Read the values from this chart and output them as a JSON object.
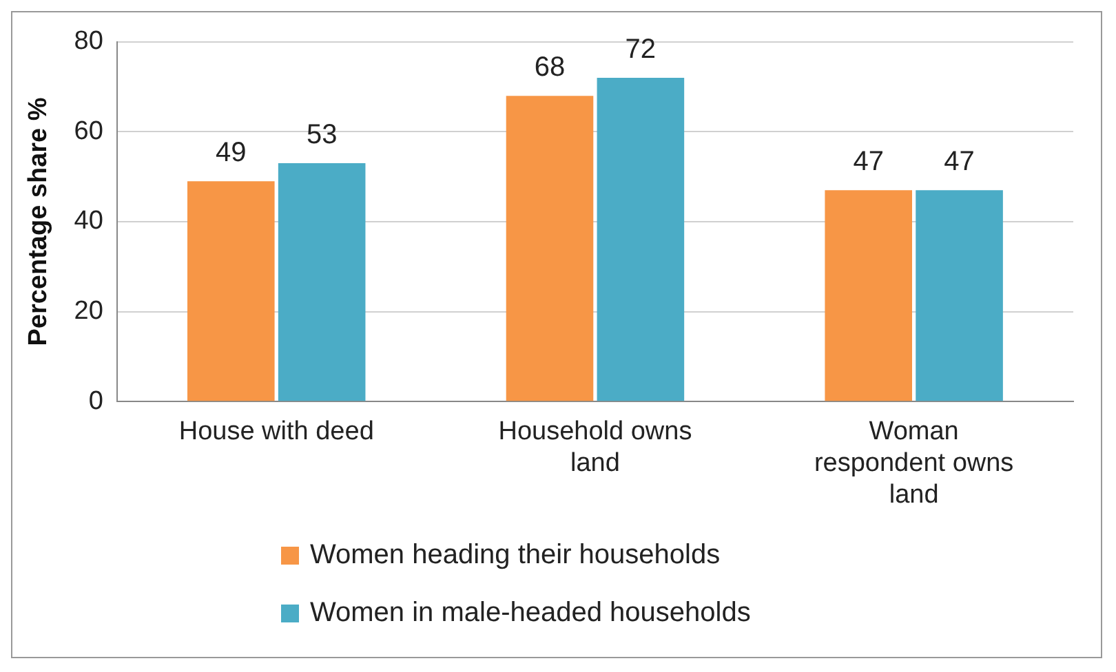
{
  "chart_data": {
    "type": "bar",
    "ylabel": "Percentage share %",
    "categories": [
      "House with deed",
      "Household owns land",
      "Woman respondent owns land"
    ],
    "series": [
      {
        "name": "Women heading their households",
        "color": "#f79646",
        "values": [
          49,
          68,
          47
        ]
      },
      {
        "name": "Women in male-headed households",
        "color": "#4bacc6",
        "values": [
          53,
          72,
          47
        ]
      }
    ],
    "ylim": [
      0,
      80
    ],
    "yticks": [
      0,
      20,
      40,
      60,
      80
    ],
    "grid": "y",
    "legend": "bottom",
    "data_labels": true
  }
}
